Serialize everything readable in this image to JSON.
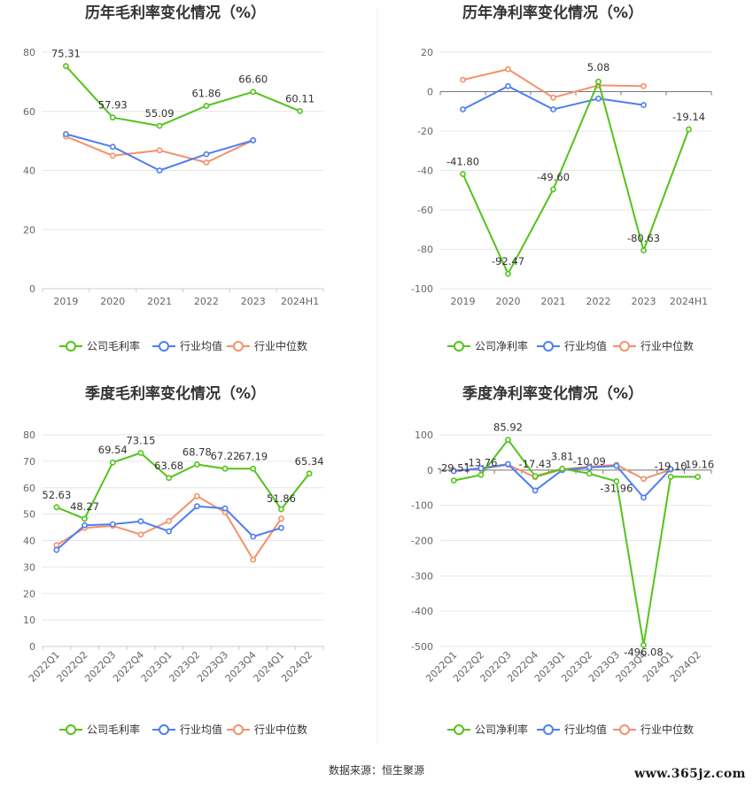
{
  "source_text": "数据来源：恒生聚源",
  "watermark_text": "www.365jz.com",
  "chart_data": [
    {
      "type": "line",
      "title": "历年毛利率变化情况（%）",
      "x": [
        "2019",
        "2020",
        "2021",
        "2022",
        "2023",
        "2024H1"
      ],
      "ylim": [
        0,
        80
      ],
      "yticks": [
        0,
        20,
        40,
        60,
        80
      ],
      "grid": true,
      "legend_position": "bottom",
      "series": [
        {
          "name": "公司毛利率",
          "color": "#52c41a",
          "values": [
            75.31,
            57.93,
            55.09,
            61.86,
            66.6,
            60.11
          ],
          "labels": [
            "75.31",
            "57.93",
            "55.09",
            "61.86",
            "66.60",
            "60.11"
          ]
        },
        {
          "name": "行业均值",
          "color": "#4e7ff0",
          "values": [
            52.3,
            48.0,
            40.0,
            45.5,
            50.2,
            null
          ]
        },
        {
          "name": "行业中位数",
          "color": "#f4916a",
          "values": [
            51.5,
            45.0,
            46.8,
            42.7,
            50.2,
            null
          ]
        }
      ]
    },
    {
      "type": "line",
      "title": "历年净利率变化情况（%）",
      "x": [
        "2019",
        "2020",
        "2021",
        "2022",
        "2023",
        "2024H1"
      ],
      "ylim": [
        -100,
        20
      ],
      "yticks": [
        -100,
        -80,
        -60,
        -40,
        -20,
        0,
        20
      ],
      "grid": true,
      "legend_position": "bottom",
      "series": [
        {
          "name": "公司净利率",
          "color": "#52c41a",
          "values": [
            -41.8,
            -92.47,
            -49.6,
            5.08,
            -80.63,
            -19.14
          ],
          "labels": [
            "-41.80",
            "-92.47",
            "-49.60",
            "5.08",
            "-80.63",
            "-19.14"
          ]
        },
        {
          "name": "行业均值",
          "color": "#4e7ff0",
          "values": [
            -9.0,
            2.8,
            -9.0,
            -3.5,
            -6.8,
            null
          ]
        },
        {
          "name": "行业中位数",
          "color": "#f4916a",
          "values": [
            6.0,
            11.4,
            -3.0,
            3.2,
            2.8,
            null
          ]
        }
      ]
    },
    {
      "type": "line",
      "title": "季度毛利率变化情况（%）",
      "x": [
        "2022Q1",
        "2022Q2",
        "2022Q3",
        "2022Q4",
        "2023Q1",
        "2023Q2",
        "2023Q3",
        "2023Q4",
        "2024Q1",
        "2024Q2"
      ],
      "ylim": [
        0,
        80
      ],
      "yticks": [
        0,
        10,
        20,
        30,
        40,
        50,
        60,
        70,
        80
      ],
      "grid": true,
      "legend_position": "bottom",
      "series": [
        {
          "name": "公司毛利率",
          "color": "#52c41a",
          "values": [
            52.63,
            48.27,
            69.54,
            73.15,
            63.68,
            68.78,
            67.22,
            67.19,
            51.86,
            65.34
          ],
          "labels": [
            "52.63",
            "48.27",
            "69.54",
            "73.15",
            "63.68",
            "68.78",
            "67.22",
            "67.19",
            "51.86",
            "65.34"
          ]
        },
        {
          "name": "行业均值",
          "color": "#4e7ff0",
          "values": [
            36.5,
            45.8,
            46.2,
            47.3,
            43.5,
            53.0,
            52.2,
            41.5,
            44.8,
            null
          ]
        },
        {
          "name": "行业中位数",
          "color": "#f4916a",
          "values": [
            38.3,
            44.8,
            45.6,
            42.3,
            47.4,
            56.8,
            50.7,
            32.8,
            48.3,
            null
          ]
        }
      ]
    },
    {
      "type": "line",
      "title": "季度净利率变化情况（%）",
      "x": [
        "2022Q1",
        "2022Q2",
        "2022Q3",
        "2022Q4",
        "2023Q1",
        "2023Q2",
        "2023Q3",
        "2023Q4",
        "2024Q1",
        "2024Q2"
      ],
      "ylim": [
        -500,
        100
      ],
      "yticks": [
        -500,
        -400,
        -300,
        -200,
        -100,
        0,
        100
      ],
      "grid": true,
      "legend_position": "bottom",
      "series": [
        {
          "name": "公司净利率",
          "color": "#52c41a",
          "values": [
            -29.51,
            -13.76,
            85.92,
            -17.43,
            3.81,
            -10.09,
            -31.96,
            -496.08,
            -19.1,
            -19.16
          ],
          "labels": [
            "-29.51",
            "-13.76",
            "85.92",
            "-17.43",
            "3.81",
            "-10.09",
            "-31.96",
            "-496.08",
            "-19.10",
            "-19.16"
          ]
        },
        {
          "name": "行业均值",
          "color": "#4e7ff0",
          "values": [
            -3.0,
            5.0,
            17.0,
            -58.0,
            0.0,
            7.0,
            12.0,
            -78.0,
            3.0,
            null
          ]
        },
        {
          "name": "行业中位数",
          "color": "#f4916a",
          "values": [
            -1.0,
            3.0,
            15.0,
            -20.0,
            2.0,
            10.0,
            15.0,
            -25.0,
            1.0,
            null
          ]
        }
      ]
    }
  ]
}
